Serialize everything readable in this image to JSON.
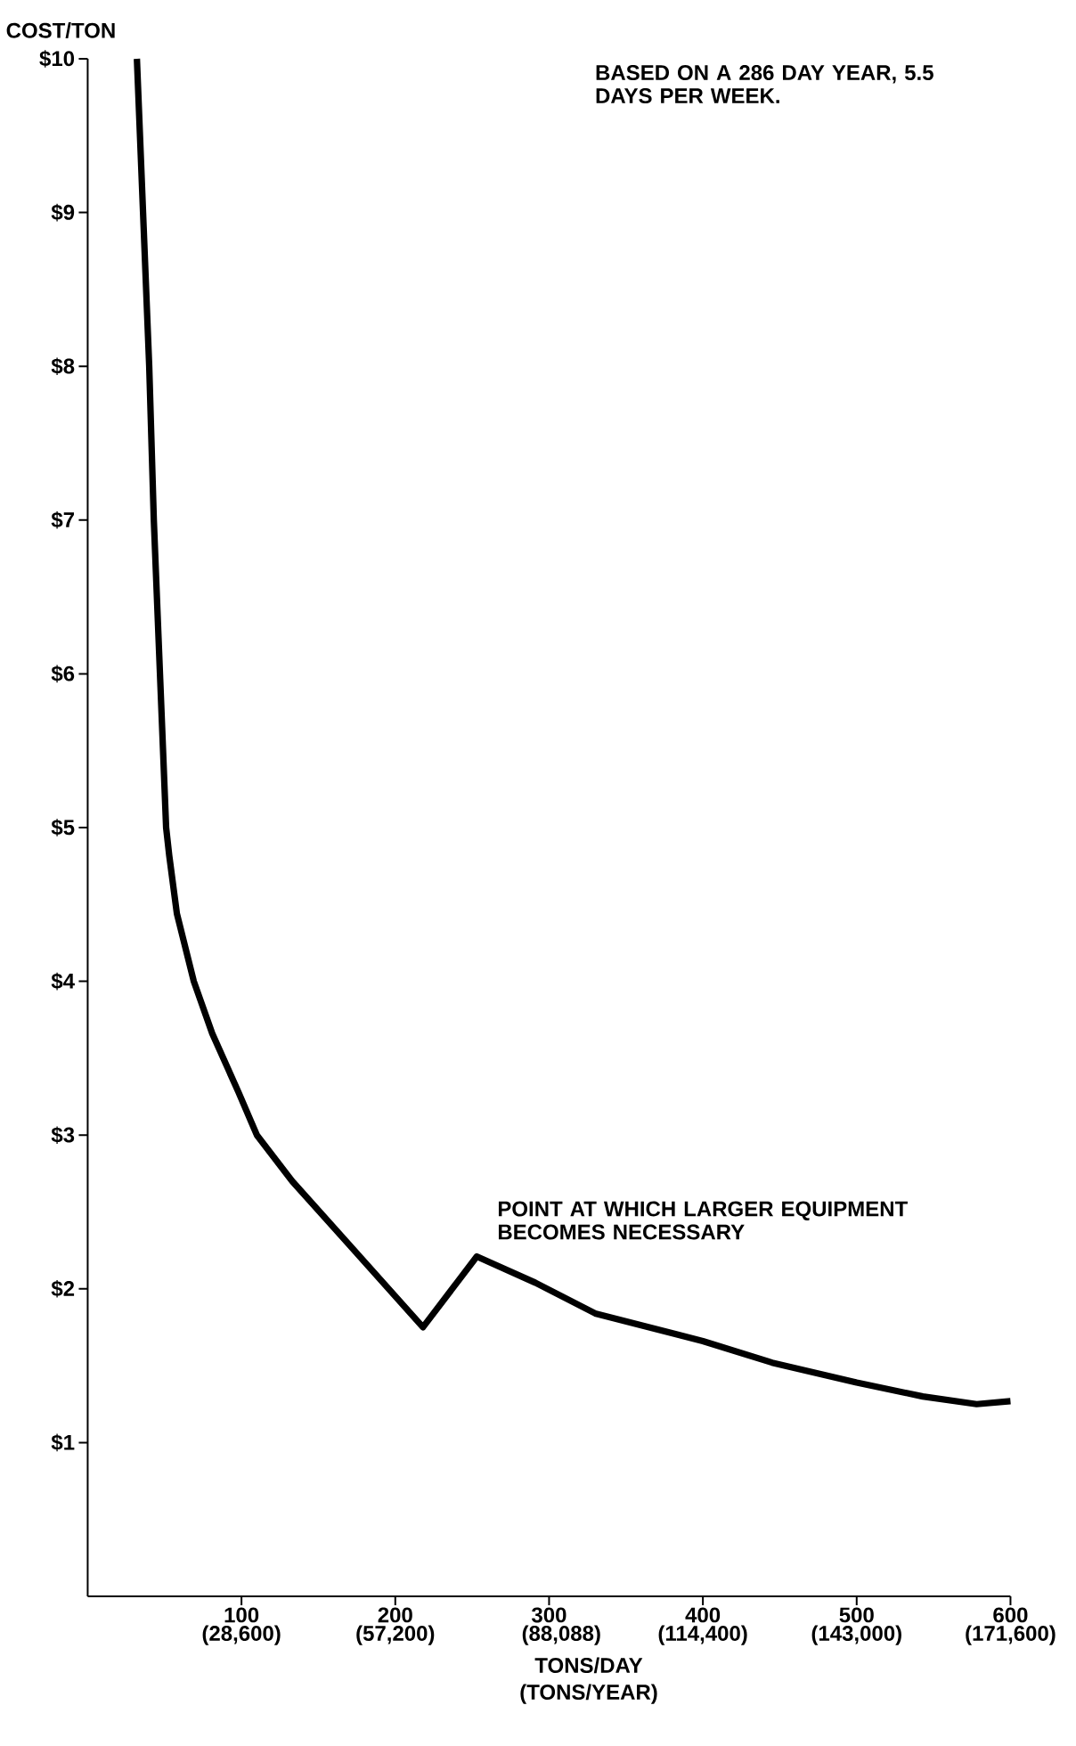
{
  "chart_data": {
    "type": "line",
    "xlabel": "TONS/DAY",
    "x2label": "(TONS/YEAR)",
    "ylabel": "COST/TON",
    "xlim": [
      0,
      600
    ],
    "ylim": [
      0,
      10
    ],
    "x2lim": [
      0,
      171600
    ],
    "xticks": [
      100,
      200,
      300,
      400,
      500,
      600
    ],
    "x2ticks": [
      {
        "value": 28600,
        "label": "(28,600)"
      },
      {
        "value": 57200,
        "label": "(57,200)"
      },
      {
        "value": 88088,
        "label": "(88,088)"
      },
      {
        "value": 114400,
        "label": "(114,400)"
      },
      {
        "value": 143000,
        "label": "(143,000)"
      },
      {
        "value": 171600,
        "label": "(171,600)"
      }
    ],
    "yticks": [
      {
        "value": 1,
        "label": "$1"
      },
      {
        "value": 2,
        "label": "$2"
      },
      {
        "value": 3,
        "label": "$3"
      },
      {
        "value": 4,
        "label": "$4"
      },
      {
        "value": 5,
        "label": "$5"
      },
      {
        "value": 6,
        "label": "$6"
      },
      {
        "value": 7,
        "label": "$7"
      },
      {
        "value": 8,
        "label": "$8"
      },
      {
        "value": 9,
        "label": "$9"
      },
      {
        "value": 10,
        "label": "$10"
      }
    ],
    "series": [
      {
        "color": "#000000",
        "x": [
          32,
          36,
          40,
          43,
          47,
          51,
          53,
          58,
          69,
          81,
          98,
          110,
          133,
          168,
          218,
          253,
          291,
          330,
          400,
          445,
          500,
          543,
          578,
          600
        ],
        "values": [
          10,
          9,
          8,
          7,
          6,
          5,
          4.82,
          4.44,
          4,
          3.66,
          3.28,
          3,
          2.7,
          2.31,
          1.75,
          2.21,
          2.04,
          1.84,
          1.66,
          1.52,
          1.39,
          1.3,
          1.25,
          1.27
        ]
      }
    ],
    "annotations": [
      "BASED ON A 286 DAY YEAR, 5.5 DAYS PER WEEK.",
      {
        "text": "POINT AT WHICH LARGER EQUIPMENT BECOMES NECESSARY",
        "x": 253,
        "y": 2.21
      }
    ]
  }
}
